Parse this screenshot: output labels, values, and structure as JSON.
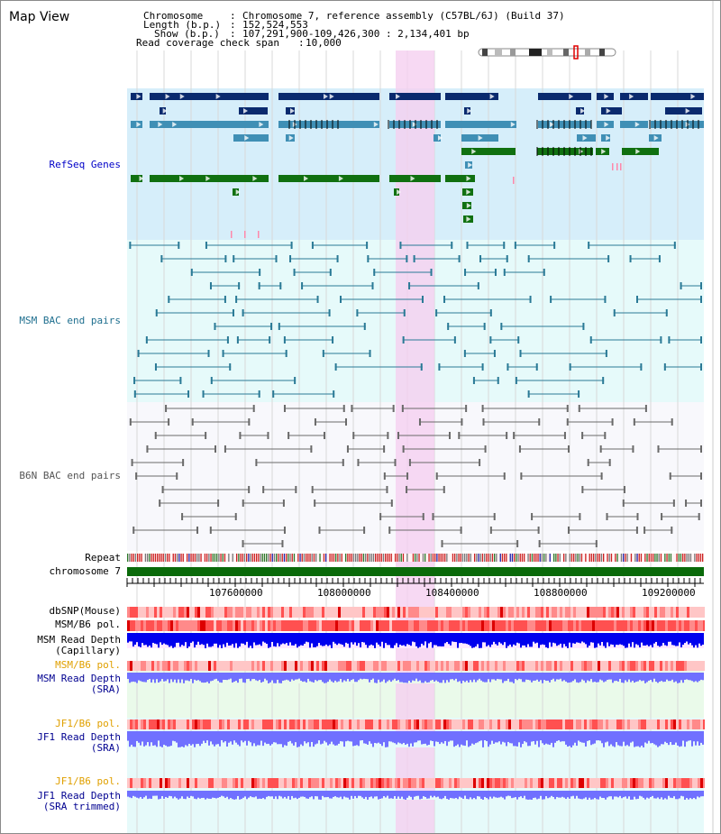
{
  "header": {
    "title": "Map View",
    "chromosome_label": "Chromosome",
    "chromosome_value": "Chromosome 7, reference assembly (C57BL/6J) (Build 37)",
    "length_label": "Length (b.p.)",
    "length_value": "152,524,553",
    "show_label": "Show (b.p.)",
    "show_value": "107,291,900-109,426,300 : 2,134,401 bp",
    "coverage_label": "Read coverage check span",
    "coverage_value": "10,000"
  },
  "tracks": {
    "refseq": "RefSeq Genes",
    "msm_bac": "MSM BAC end pairs",
    "b6n_bac": "B6N BAC end pairs",
    "repeat": "Repeat",
    "chromosome": "chromosome 7",
    "dbsnp": "dbSNP(Mouse)",
    "msm_b6_pol_1": "MSM/B6 pol.",
    "msm_read_depth_cap_1": "MSM Read Depth",
    "msm_read_depth_cap_2": "(Capillary)",
    "msm_b6_pol_2": "MSM/B6 pol.",
    "msm_read_depth_sra_1": "MSM Read Depth",
    "msm_read_depth_sra_2": "(SRA)",
    "jf1_b6_pol_1": "JF1/B6 pol.",
    "jf1_read_depth_sra_1": "JF1 Read Depth",
    "jf1_read_depth_sra_2": "(SRA)",
    "jf1_b6_pol_2": "JF1/B6 pol.",
    "jf1_read_depth_trim_1": "JF1 Read Depth",
    "jf1_read_depth_trim_2": "(SRA trimmed)"
  },
  "axis": {
    "ticks": [
      "107600000",
      "108000000",
      "108400000",
      "108800000",
      "109200000"
    ]
  },
  "colors": {
    "highlight": "#f5d0f0",
    "refseq_bg": "#d6eefa",
    "bac_bg": "#e6fafa",
    "dark_gene": "#0a2a6e",
    "mid_gene": "#3f8fb5",
    "green_gene": "#107010",
    "chromosome_bar": "#0a6a0a",
    "depth_dark": "#0000ee",
    "depth_light": "#7070ff",
    "pol_red": "#ee3030"
  }
}
